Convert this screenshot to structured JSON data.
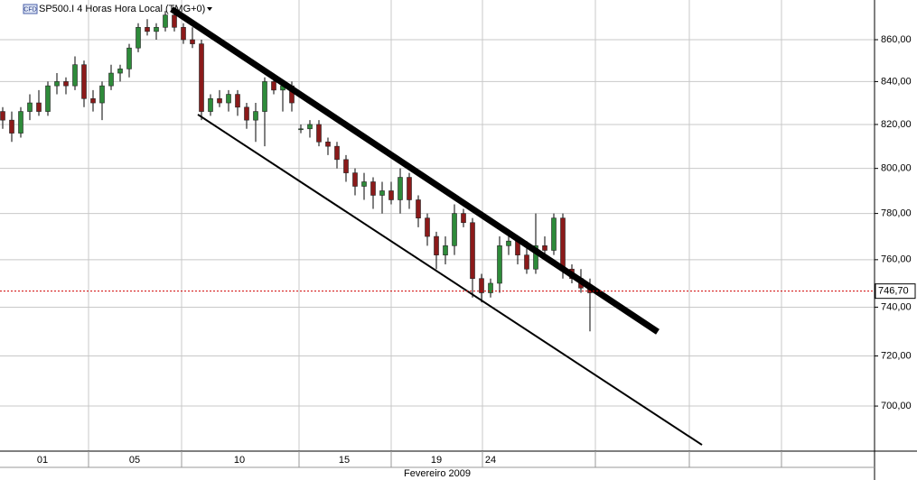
{
  "chart_data": {
    "type": "candlestick",
    "title": "SP500.I 4 Horas Hora Local (TMG+0)",
    "icon": "CFD",
    "xlabel": "Fevereiro 2009",
    "log_scale": true,
    "grid": true,
    "up_color": "#2e8b3a",
    "down_color": "#8b1a1a",
    "xlim": [
      0,
      96.8
    ],
    "ylim": [
      682.5,
      879.4
    ],
    "xticks": [
      {
        "value": 4.7,
        "label": "01"
      },
      {
        "value": 14.9,
        "label": "05"
      },
      {
        "value": 26.5,
        "label": "10"
      },
      {
        "value": 38.1,
        "label": "15"
      },
      {
        "value": 48.3,
        "label": "19"
      },
      {
        "value": 54.3,
        "label": "24"
      }
    ],
    "xgrid": [
      9.8,
      20.1,
      33.1,
      43.3,
      53.4,
      65.9,
      76.3,
      86.5
    ],
    "yticks": [
      {
        "value": 700,
        "label": "700,00"
      },
      {
        "value": 720,
        "label": "720,00"
      },
      {
        "value": 740,
        "label": "740,00"
      },
      {
        "value": 760,
        "label": "760,00"
      },
      {
        "value": 780,
        "label": "780,00"
      },
      {
        "value": 800,
        "label": "800,00"
      },
      {
        "value": 820,
        "label": "820,00"
      },
      {
        "value": 840,
        "label": "840,00"
      },
      {
        "value": 860,
        "label": "860,00"
      }
    ],
    "last_price": {
      "value": 746.7,
      "label": "746,70"
    },
    "x": [
      0.3,
      1.3,
      2.3,
      3.3,
      4.3,
      5.3,
      6.3,
      7.3,
      8.3,
      9.3,
      10.3,
      11.3,
      12.3,
      13.3,
      14.3,
      15.3,
      16.3,
      17.3,
      18.3,
      19.3,
      20.3,
      21.3,
      22.3,
      23.3,
      24.3,
      25.3,
      26.3,
      27.3,
      28.3,
      29.3,
      30.3,
      31.3,
      32.3,
      33.3,
      34.3,
      35.3,
      36.3,
      37.3,
      38.3,
      39.3,
      40.3,
      41.3,
      42.3,
      43.3,
      44.3,
      45.3,
      46.3,
      47.3,
      48.3,
      49.3,
      50.3,
      51.3,
      52.3,
      53.3,
      54.3,
      55.3,
      56.3,
      57.3,
      58.3,
      59.3,
      60.3,
      61.3,
      62.3,
      63.3,
      64.3,
      65.3
    ],
    "open": [
      826,
      822,
      816,
      826,
      830,
      826,
      838,
      840,
      838,
      848,
      832,
      830,
      838,
      844,
      846,
      856,
      866,
      864,
      866,
      872,
      866,
      860,
      858,
      826,
      832,
      830,
      834,
      828,
      822,
      826,
      840,
      836,
      838,
      818,
      818,
      820,
      812,
      810,
      804,
      798,
      792,
      794,
      788,
      790,
      786,
      796,
      786,
      778,
      770,
      762,
      766,
      780,
      776,
      752,
      746,
      750,
      766,
      768,
      762,
      756,
      766,
      764,
      778,
      756,
      752,
      748
    ],
    "high": [
      828,
      826,
      828,
      834,
      836,
      840,
      844,
      842,
      852,
      850,
      836,
      840,
      848,
      848,
      858,
      868,
      870,
      868,
      874,
      874,
      868,
      866,
      860,
      834,
      836,
      836,
      836,
      830,
      830,
      842,
      842,
      840,
      840,
      820,
      822,
      822,
      814,
      812,
      806,
      800,
      798,
      796,
      794,
      794,
      800,
      798,
      788,
      780,
      772,
      770,
      784,
      782,
      778,
      754,
      752,
      770,
      772,
      770,
      768,
      780,
      770,
      780,
      780,
      758,
      756,
      752
    ],
    "low": [
      818,
      812,
      814,
      822,
      824,
      824,
      834,
      834,
      836,
      828,
      826,
      822,
      836,
      840,
      842,
      854,
      862,
      860,
      864,
      864,
      858,
      856,
      822,
      824,
      828,
      826,
      824,
      818,
      812,
      810,
      834,
      826,
      826,
      816,
      814,
      810,
      806,
      800,
      794,
      788,
      786,
      782,
      780,
      784,
      780,
      782,
      774,
      766,
      756,
      758,
      762,
      774,
      744,
      742,
      744,
      746,
      762,
      758,
      754,
      754,
      760,
      762,
      752,
      750,
      746,
      730
    ],
    "close": [
      822,
      816,
      826,
      830,
      826,
      838,
      840,
      838,
      848,
      832,
      830,
      838,
      844,
      846,
      856,
      866,
      864,
      866,
      872,
      866,
      860,
      858,
      826,
      832,
      830,
      834,
      828,
      822,
      826,
      840,
      836,
      838,
      830,
      818,
      820,
      812,
      810,
      804,
      798,
      792,
      794,
      788,
      790,
      786,
      796,
      786,
      778,
      770,
      762,
      766,
      780,
      776,
      752,
      746,
      750,
      766,
      768,
      762,
      756,
      766,
      764,
      778,
      756,
      752,
      748,
      746
    ],
    "trendlines": [
      {
        "x": [
          19.0,
          72.8
        ],
        "y": [
          874.9,
          729.8
        ]
      },
      {
        "x": [
          21.9,
          77.7
        ],
        "y": [
          824.6,
          684.9
        ]
      }
    ]
  }
}
